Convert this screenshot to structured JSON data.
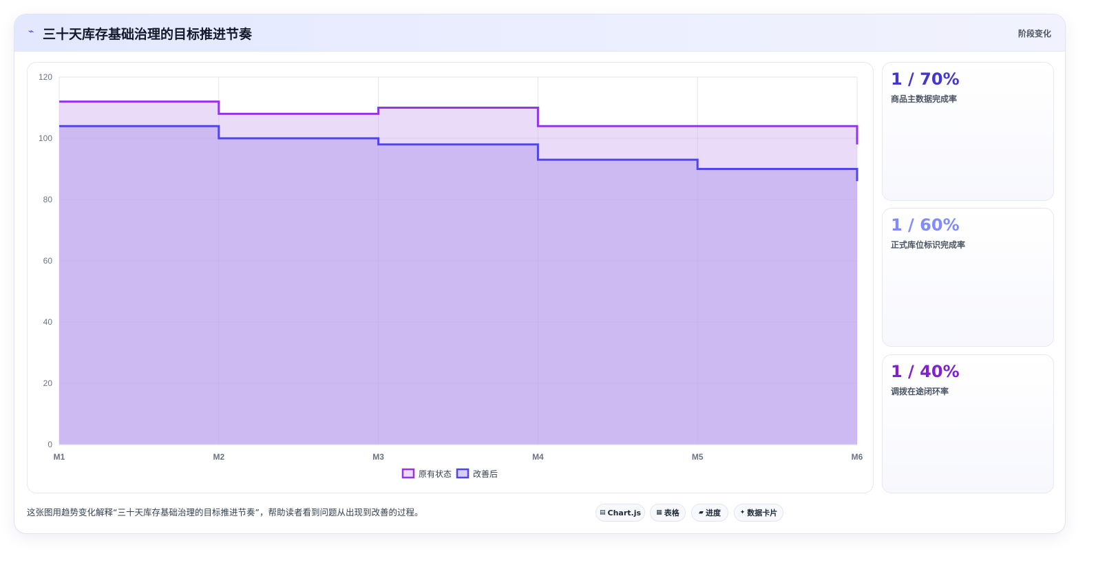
{
  "header": {
    "icon": "chart-line-icon",
    "title": "三十天库存基础治理的目标推进节奏",
    "right_label": "阶段变化"
  },
  "chart_data": {
    "type": "area",
    "step": true,
    "categories": [
      "M1",
      "M2",
      "M3",
      "M4",
      "M5",
      "M6"
    ],
    "series": [
      {
        "name": "原有状态",
        "values": [
          112,
          108,
          110,
          104,
          104,
          98
        ],
        "color": "#9333ea"
      },
      {
        "name": "改善后",
        "values": [
          104,
          100,
          98,
          93,
          90,
          86
        ],
        "color": "#4f46e5"
      }
    ],
    "ylim": [
      0,
      120
    ],
    "yticks": [
      0,
      20,
      40,
      60,
      80,
      100,
      120
    ],
    "grid": true,
    "legend": "bottom"
  },
  "kpis": [
    {
      "value": "1 / 70%",
      "label": "商品主数据完成率",
      "color": "#4338ca"
    },
    {
      "value": "1 / 60%",
      "label": "正式库位标识完成率",
      "color": "#818cf8"
    },
    {
      "value": "1 / 40%",
      "label": "调拨在途闭环率",
      "color": "#7e22ce"
    }
  ],
  "footer": {
    "note": "这张图用趋势变化解释“三十天库存基础治理的目标推进节奏”，帮助读者看到问题从出现到改善的过程。",
    "chips": [
      {
        "icon": "chart-icon",
        "glyph": "▤",
        "label": "Chart.js"
      },
      {
        "icon": "table-icon",
        "glyph": "▦",
        "label": "表格"
      },
      {
        "icon": "progress-icon",
        "glyph": "▰",
        "label": "进度"
      },
      {
        "icon": "sparkle-icon",
        "glyph": "✦",
        "label": "数据卡片"
      }
    ]
  }
}
